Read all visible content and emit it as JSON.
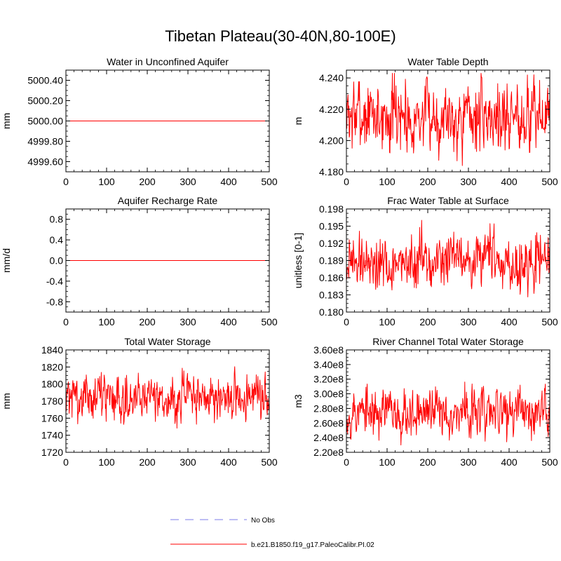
{
  "figure_title": "Tibetan Plateau(30-40N,80-100E)",
  "colors": {
    "series": "#ff0000",
    "obs": "#a8a8f0",
    "axis": "#000000",
    "background": "#ffffff"
  },
  "legend": [
    {
      "label": "No Obs",
      "style": "dashed",
      "color": "#a8a8f0"
    },
    {
      "label": "b.e21.B1850.f19_g17.PaleoCalibr.PI.02",
      "style": "solid",
      "color": "#ff0000"
    }
  ],
  "chart_data": [
    {
      "type": "line",
      "title": "Water in Unconfined Aquifer",
      "ylabel": "mm",
      "xlim": [
        0,
        500
      ],
      "ylim": [
        4999.5,
        5000.5
      ],
      "xticks": [
        0,
        100,
        200,
        300,
        400,
        500
      ],
      "xtick_labels": [
        "0",
        "100",
        "200",
        "300",
        "400",
        "500"
      ],
      "yticks": [
        4999.6,
        4999.8,
        5000.0,
        5000.2,
        5000.4
      ],
      "ytick_labels": [
        "4999.60",
        "4999.80",
        "5000.00",
        "5000.20",
        "5000.40"
      ],
      "series": [
        {
          "name": "b.e21.B1850.f19_g17.PaleoCalibr.PI.02",
          "kind": "constant",
          "value": 5000.0,
          "n": 501
        }
      ]
    },
    {
      "type": "line",
      "title": "Water Table Depth",
      "ylabel": "m",
      "xlim": [
        0,
        500
      ],
      "ylim": [
        4.18,
        4.245
      ],
      "xticks": [
        0,
        100,
        200,
        300,
        400,
        500
      ],
      "xtick_labels": [
        "0",
        "100",
        "200",
        "300",
        "400",
        "500"
      ],
      "yticks": [
        4.18,
        4.2,
        4.22,
        4.24
      ],
      "ytick_labels": [
        "4.180",
        "4.200",
        "4.220",
        "4.240"
      ],
      "series": [
        {
          "name": "b.e21.B1850.f19_g17.PaleoCalibr.PI.02",
          "kind": "noisy",
          "n": 501,
          "mean": 4.216,
          "amp": 0.011,
          "min": 4.184,
          "max": 4.243,
          "seed": 7
        }
      ]
    },
    {
      "type": "line",
      "title": "Aquifer Recharge Rate",
      "ylabel": "mm/d",
      "xlim": [
        0,
        500
      ],
      "ylim": [
        -1.0,
        1.0
      ],
      "xticks": [
        0,
        100,
        200,
        300,
        400,
        500
      ],
      "xtick_labels": [
        "0",
        "100",
        "200",
        "300",
        "400",
        "500"
      ],
      "yticks": [
        -0.8,
        -0.4,
        0.0,
        0.4,
        0.8
      ],
      "ytick_labels": [
        "-0.8",
        "-0.4",
        "0.0",
        "0.4",
        "0.8"
      ],
      "series": [
        {
          "name": "b.e21.B1850.f19_g17.PaleoCalibr.PI.02",
          "kind": "constant",
          "value": 0.0,
          "n": 501
        }
      ]
    },
    {
      "type": "line",
      "title": "Frac Water Table at Surface",
      "ylabel": "unitless [0-1]",
      "xlim": [
        0,
        500
      ],
      "ylim": [
        0.18,
        0.198
      ],
      "xticks": [
        0,
        100,
        200,
        300,
        400,
        500
      ],
      "xtick_labels": [
        "0",
        "100",
        "200",
        "300",
        "400",
        "500"
      ],
      "yticks": [
        0.18,
        0.183,
        0.186,
        0.189,
        0.192,
        0.195,
        0.198
      ],
      "ytick_labels": [
        "0.180",
        "0.183",
        "0.186",
        "0.189",
        "0.192",
        "0.195",
        "0.198"
      ],
      "series": [
        {
          "name": "b.e21.B1850.f19_g17.PaleoCalibr.PI.02",
          "kind": "noisy",
          "n": 501,
          "mean": 0.1888,
          "amp": 0.0024,
          "min": 0.18,
          "max": 0.1966,
          "seed": 19
        }
      ]
    },
    {
      "type": "line",
      "title": "Total Water Storage",
      "ylabel": "mm",
      "xlim": [
        0,
        500
      ],
      "ylim": [
        1720,
        1840
      ],
      "xticks": [
        0,
        100,
        200,
        300,
        400,
        500
      ],
      "xtick_labels": [
        "0",
        "100",
        "200",
        "300",
        "400",
        "500"
      ],
      "yticks": [
        1720,
        1740,
        1760,
        1780,
        1800,
        1820,
        1840
      ],
      "ytick_labels": [
        "1720",
        "1740",
        "1760",
        "1780",
        "1800",
        "1820",
        "1840"
      ],
      "series": [
        {
          "name": "b.e21.B1850.f19_g17.PaleoCalibr.PI.02",
          "kind": "noisy",
          "n": 501,
          "mean": 1785,
          "amp": 13,
          "min": 1735,
          "max": 1827,
          "seed": 31
        }
      ]
    },
    {
      "type": "line",
      "title": "River Channel Total Water Storage",
      "ylabel": "m3",
      "xlim": [
        0,
        500
      ],
      "ylim": [
        220000000,
        360000000
      ],
      "xticks": [
        0,
        100,
        200,
        300,
        400,
        500
      ],
      "xtick_labels": [
        "0",
        "100",
        "200",
        "300",
        "400",
        "500"
      ],
      "yticks": [
        220000000,
        240000000,
        260000000,
        280000000,
        300000000,
        320000000,
        340000000,
        360000000
      ],
      "ytick_labels": [
        "2.20e8",
        "2.40e8",
        "2.60e8",
        "2.80e8",
        "3.00e8",
        "3.20e8",
        "3.40e8",
        "3.60e8"
      ],
      "series": [
        {
          "name": "b.e21.B1850.f19_g17.PaleoCalibr.PI.02",
          "kind": "noisy",
          "n": 501,
          "mean": 275000000,
          "amp": 16000000,
          "min": 225000000,
          "max": 344000000,
          "seed": 53
        }
      ]
    }
  ]
}
